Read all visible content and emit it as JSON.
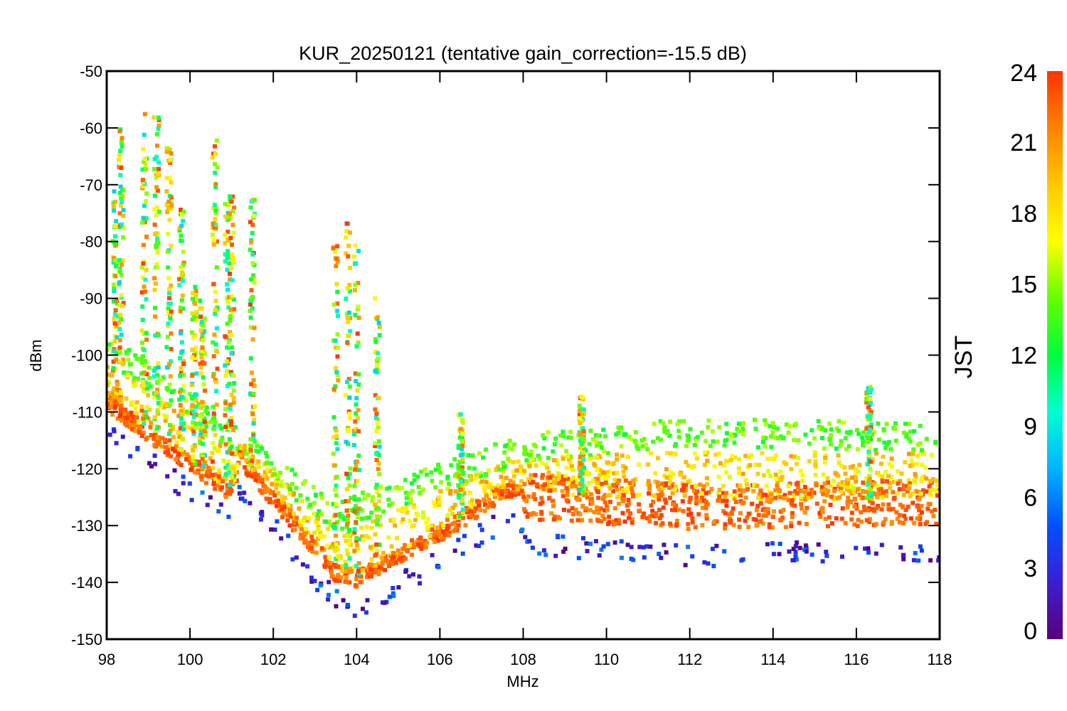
{
  "chart_data": {
    "type": "scatter",
    "title": "KUR_20250121 (tentative gain_correction=-15.5 dB)",
    "xlabel": "MHz",
    "ylabel": "dBm",
    "xlim": [
      98,
      118
    ],
    "ylim": [
      -150,
      -50
    ],
    "x_ticks": [
      98,
      100,
      102,
      104,
      106,
      108,
      110,
      112,
      114,
      116,
      118
    ],
    "y_ticks": [
      -50,
      -60,
      -70,
      -80,
      -90,
      -100,
      -110,
      -120,
      -130,
      -140,
      -150
    ],
    "colorbar": {
      "label": "JST",
      "range": [
        0,
        24
      ],
      "ticks": [
        0,
        3,
        6,
        9,
        12,
        15,
        18,
        21,
        24
      ],
      "colormap": "rainbow",
      "colors": [
        "#5a0078",
        "#3c1ed2",
        "#0050ff",
        "#00b4ff",
        "#00ffd2",
        "#00ff3c",
        "#64ff00",
        "#ffff00",
        "#ffc800",
        "#ff8200",
        "#ff3200"
      ]
    },
    "grid": false,
    "series_description": {
      "floor": [
        {
          "mhz": 98,
          "dbm": -108
        },
        {
          "mhz": 101,
          "dbm": -124
        },
        {
          "mhz": 101.2,
          "dbm": -118
        },
        {
          "mhz": 103.5,
          "dbm": -138
        },
        {
          "mhz": 104,
          "dbm": -139
        },
        {
          "mhz": 106,
          "dbm": -131
        },
        {
          "mhz": 107.5,
          "dbm": -124
        },
        {
          "mhz": 108,
          "dbm": -124
        },
        {
          "mhz": 112,
          "dbm": -126
        },
        {
          "mhz": 118,
          "dbm": -125
        }
      ],
      "daytime_upper_edge": [
        {
          "mhz": 98,
          "dbm": -96
        },
        {
          "mhz": 101,
          "dbm": -112
        },
        {
          "mhz": 103.5,
          "dbm": -126
        },
        {
          "mhz": 106,
          "dbm": -119
        },
        {
          "mhz": 108,
          "dbm": -114
        },
        {
          "mhz": 112,
          "dbm": -111
        },
        {
          "mhz": 118,
          "dbm": -112
        }
      ],
      "station_peaks": [
        {
          "mhz": 98.2,
          "dbm": -71
        },
        {
          "mhz": 98.35,
          "dbm": -60
        },
        {
          "mhz": 98.9,
          "dbm": -57
        },
        {
          "mhz": 99.2,
          "dbm": -55
        },
        {
          "mhz": 99.5,
          "dbm": -63
        },
        {
          "mhz": 99.8,
          "dbm": -74
        },
        {
          "mhz": 100.1,
          "dbm": -88
        },
        {
          "mhz": 100.3,
          "dbm": -90
        },
        {
          "mhz": 100.6,
          "dbm": -61
        },
        {
          "mhz": 100.9,
          "dbm": -72
        },
        {
          "mhz": 101.0,
          "dbm": -72
        },
        {
          "mhz": 101.5,
          "dbm": -70
        },
        {
          "mhz": 103.5,
          "dbm": -80
        },
        {
          "mhz": 103.8,
          "dbm": -76
        },
        {
          "mhz": 104.0,
          "dbm": -80
        },
        {
          "mhz": 104.5,
          "dbm": -90
        },
        {
          "mhz": 106.5,
          "dbm": -110
        },
        {
          "mhz": 109.4,
          "dbm": -107
        },
        {
          "mhz": 116.3,
          "dbm": -105
        }
      ]
    }
  }
}
